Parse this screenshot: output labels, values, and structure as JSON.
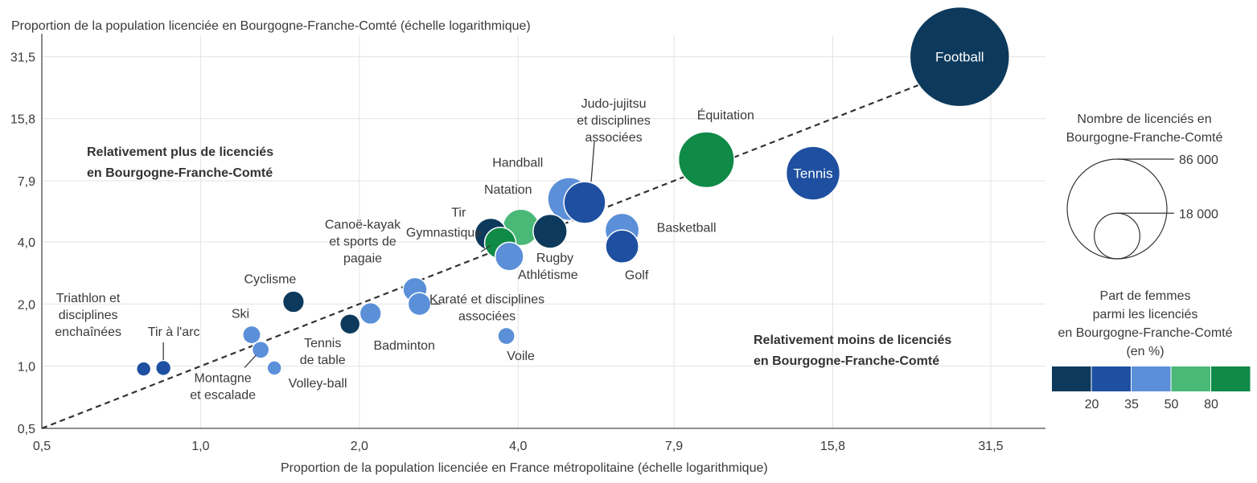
{
  "chart_data": {
    "type": "scatter",
    "title": "",
    "xlabel": "Proportion de la population licenciée en France métropolitaine (échelle logarithmique)",
    "ylabel": "Proportion de la population licenciée en Bourgogne-Franche-Comté (échelle logarithmique)",
    "x_scale": "log",
    "y_scale": "log",
    "xlim": [
      0.5,
      40
    ],
    "ylim": [
      0.5,
      40
    ],
    "x_ticks": [
      "0,5",
      "1,0",
      "2,0",
      "4,0",
      "7,9",
      "15,8",
      "31,5"
    ],
    "y_ticks": [
      "0,5",
      "1,0",
      "2,0",
      "4,0",
      "7,9",
      "15,8",
      "31,5"
    ],
    "grid": true,
    "reference_line": "y = x",
    "annotations": {
      "above": [
        "Relativement plus de licenciés",
        "en Bourgogne-Franche-Comté"
      ],
      "below": [
        "Relativement moins de licenciés",
        "en Bourgogne-Franche-Comté"
      ]
    },
    "points": [
      {
        "label": "Football",
        "x": 27.5,
        "y": 31.5,
        "licencies": 86000,
        "femmes_class": 1,
        "label_inside": true
      },
      {
        "label": "Tennis",
        "x": 14.5,
        "y": 8.6,
        "licencies": 25000,
        "femmes_class": 2,
        "label_inside": true
      },
      {
        "label": "Équitation",
        "x": 9.1,
        "y": 10.0,
        "licencies": 27000,
        "femmes_class": 5
      },
      {
        "label": "Judo-jujitsu\net disciplines\nassociées",
        "x": 5.35,
        "y": 6.2,
        "licencies": 15000,
        "femmes_class": 2
      },
      {
        "label": "Handball",
        "x": 5.0,
        "y": 6.45,
        "licencies": 16000,
        "femmes_class": 3
      },
      {
        "label": "Basketball",
        "x": 6.3,
        "y": 4.55,
        "licencies": 10000,
        "femmes_class": 3
      },
      {
        "label": "Golf",
        "x": 6.3,
        "y": 3.8,
        "licencies": 9500,
        "femmes_class": 2
      },
      {
        "label": "Rugby",
        "x": 4.6,
        "y": 4.5,
        "licencies": 10000,
        "femmes_class": 1
      },
      {
        "label": "Natation",
        "x": 4.05,
        "y": 4.7,
        "licencies": 11500,
        "femmes_class": 4
      },
      {
        "label": "Tir",
        "x": 3.55,
        "y": 4.35,
        "licencies": 9000,
        "femmes_class": 1
      },
      {
        "label": "Gymnastique",
        "x": 3.7,
        "y": 3.95,
        "licencies": 8500,
        "femmes_class": 5
      },
      {
        "label": "Athlétisme",
        "x": 3.85,
        "y": 3.4,
        "licencies": 7000,
        "femmes_class": 3
      },
      {
        "label": "Canoë-kayak\net sports de\npagaie",
        "x": 2.55,
        "y": 2.35,
        "licencies": 5000,
        "femmes_class": 3
      },
      {
        "label": "Karaté et disciplines\nassociées",
        "x": 2.6,
        "y": 2.0,
        "licencies": 4500,
        "femmes_class": 3
      },
      {
        "label": "Badminton",
        "x": 2.1,
        "y": 1.8,
        "licencies": 4000,
        "femmes_class": 3
      },
      {
        "label": "Tennis\nde table",
        "x": 1.92,
        "y": 1.6,
        "licencies": 3500,
        "femmes_class": 1
      },
      {
        "label": "Cyclisme",
        "x": 1.5,
        "y": 2.05,
        "licencies": 4000,
        "femmes_class": 1
      },
      {
        "label": "Voile",
        "x": 3.8,
        "y": 1.4,
        "licencies": 2500,
        "femmes_class": 3
      },
      {
        "label": "Ski",
        "x": 1.25,
        "y": 1.42,
        "licencies": 2800,
        "femmes_class": 3
      },
      {
        "label": "Montagne\net escalade",
        "x": 1.3,
        "y": 1.2,
        "licencies": 2500,
        "femmes_class": 3
      },
      {
        "label": "Volley-ball",
        "x": 1.38,
        "y": 0.98,
        "licencies": 1800,
        "femmes_class": 3
      },
      {
        "label": "Tir à l'arc",
        "x": 0.85,
        "y": 0.98,
        "licencies": 2000,
        "femmes_class": 2
      },
      {
        "label": "Triathlon et\ndisciplines\nenchaînées",
        "x": 0.78,
        "y": 0.97,
        "licencies": 1800,
        "femmes_class": 2
      }
    ],
    "legend_size": {
      "title": [
        "Nombre de licenciés en",
        "Bourgogne-Franche-Comté"
      ],
      "values": [
        {
          "label": "86 000",
          "value": 86000
        },
        {
          "label": "18 000",
          "value": 18000
        }
      ]
    },
    "legend_color": {
      "title": [
        "Part de femmes",
        "parmi les licenciés",
        "en Bourgogne-Franche-Comté",
        "(en %)"
      ],
      "colors": [
        "#0d3a5c",
        "#1e4fa0",
        "#5b8fd8",
        "#4ab877",
        "#0f8a47"
      ],
      "breaks": [
        "20",
        "35",
        "50",
        "80"
      ]
    }
  }
}
